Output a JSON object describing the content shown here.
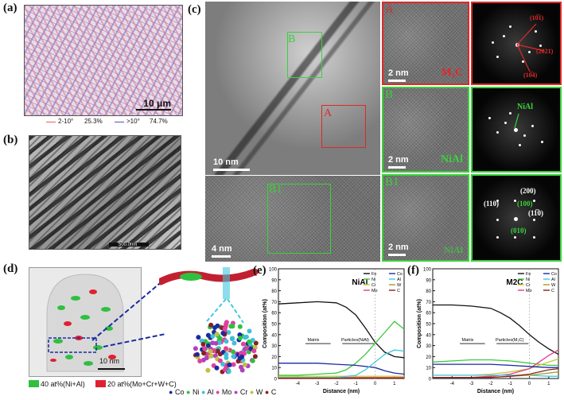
{
  "panel_labels": {
    "a": "(a)",
    "b": "(b)",
    "c": "(c)",
    "d": "(d)",
    "e": "(e)",
    "f": "(f)"
  },
  "panel_a": {
    "scale": "10 μm",
    "legend": [
      {
        "range": "2-10°",
        "fraction": "25.3%",
        "color": "#e06070"
      },
      {
        "range": ">10°",
        "fraction": "74.7%",
        "color": "#5050c0"
      }
    ]
  },
  "panel_b": {
    "scale": "500.0nm"
  },
  "panel_c": {
    "main_scale": "10 nm",
    "bottom_scale": "4 nm",
    "boxes": {
      "A": "A",
      "B": "B",
      "B1": "B1"
    },
    "hr_scale": "2 nm",
    "phases": {
      "A": "M₂C",
      "B": "NiAl",
      "B1": "NiAl"
    },
    "fft_labels": {
      "A": [
        "(10̅1)",
        "(2021)",
        "(10̅4)"
      ],
      "B": [
        "NiAl"
      ],
      "B1": [
        "(110)",
        "(200)",
        "(100)",
        "(11̅0)",
        "(010)"
      ]
    }
  },
  "panel_d": {
    "scale": "10 nm",
    "legend": [
      {
        "label": "40 at%(Ni+Al)",
        "color": "#2fc040"
      },
      {
        "label": "20 at%(Mo+Cr+W+C)",
        "color": "#e02030"
      }
    ],
    "elements": [
      {
        "name": "Co",
        "color": "#1a2aa0"
      },
      {
        "name": "Ni",
        "color": "#2fc040"
      },
      {
        "name": "Al",
        "color": "#40c0d8"
      },
      {
        "name": "Mo",
        "color": "#e040a0"
      },
      {
        "name": "Cr",
        "color": "#b040c0"
      },
      {
        "name": "W",
        "color": "#c0c040"
      },
      {
        "name": "C",
        "color": "#8a2020"
      }
    ]
  },
  "chart_data": [
    {
      "type": "line",
      "title": "NiAl",
      "xlabel": "Distance (nm)",
      "ylabel": "Composition (at%)",
      "xlim": [
        -5,
        1.5
      ],
      "ylim": [
        0,
        100
      ],
      "xticks": [
        -4,
        -3,
        -2,
        -1,
        0,
        1
      ],
      "yticks": [
        0,
        10,
        20,
        30,
        40,
        50,
        60,
        70,
        80,
        90,
        100
      ],
      "annotations": [
        "Matrix",
        "Particles(NiAl)"
      ],
      "series": [
        {
          "name": "Fe",
          "color": "#111111",
          "x": [
            -5,
            -4,
            -3,
            -2,
            -1.5,
            -1,
            -0.5,
            0,
            0.5,
            1,
            1.5
          ],
          "y": [
            68,
            69,
            70,
            69,
            65,
            58,
            46,
            33,
            24,
            20,
            19
          ]
        },
        {
          "name": "Ni",
          "color": "#3cc83c",
          "x": [
            -5,
            -4,
            -3,
            -2,
            -1.5,
            -1,
            -0.5,
            0,
            0.5,
            1,
            1.5
          ],
          "y": [
            3,
            3,
            4,
            5,
            8,
            14,
            22,
            32,
            42,
            52,
            45
          ]
        },
        {
          "name": "Cr",
          "color": "#c8c83c",
          "x": [
            -5,
            -4,
            -3,
            -2,
            -1,
            0,
            1,
            1.5
          ],
          "y": [
            2,
            2,
            2,
            2,
            2,
            2,
            2,
            2
          ]
        },
        {
          "name": "Mo",
          "color": "#e03c8c",
          "x": [
            -5,
            -4,
            -3,
            -2,
            -1,
            0,
            1,
            1.5
          ],
          "y": [
            1,
            1,
            1,
            1,
            1,
            1,
            1,
            1
          ]
        },
        {
          "name": "Co",
          "color": "#1a2aa0",
          "x": [
            -5,
            -4,
            -3,
            -2,
            -1,
            0,
            0.5,
            1,
            1.5
          ],
          "y": [
            14,
            14,
            14,
            13,
            12,
            10,
            7,
            5,
            4
          ]
        },
        {
          "name": "Al",
          "color": "#40c8e0",
          "x": [
            -5,
            -4,
            -3,
            -2,
            -1,
            -0.5,
            0,
            0.5,
            1,
            1.5
          ],
          "y": [
            1,
            1,
            1,
            1,
            3,
            8,
            15,
            22,
            26,
            25
          ]
        },
        {
          "name": "W",
          "color": "#a0a020",
          "x": [
            -5,
            -4,
            -3,
            -2,
            -1,
            0,
            1,
            1.5
          ],
          "y": [
            0.5,
            0.5,
            0.5,
            0.5,
            0.5,
            0.5,
            0.5,
            0.5
          ]
        },
        {
          "name": "C",
          "color": "#8a2020",
          "x": [
            -5,
            -4,
            -3,
            -2,
            -1,
            0,
            1,
            1.5
          ],
          "y": [
            0.3,
            0.3,
            0.3,
            0.3,
            0.3,
            0.3,
            0.3,
            0.3
          ]
        }
      ]
    },
    {
      "type": "line",
      "title": "M2C",
      "xlabel": "Distance (nm)",
      "ylabel": "Composition (at%)",
      "xlim": [
        -5,
        1.5
      ],
      "ylim": [
        0,
        100
      ],
      "xticks": [
        -4,
        -3,
        -2,
        -1,
        0,
        1
      ],
      "yticks": [
        0,
        10,
        20,
        30,
        40,
        50,
        60,
        70,
        80,
        90,
        100
      ],
      "annotations": [
        "Matrix",
        "Particles(M₂C)"
      ],
      "series": [
        {
          "name": "Fe",
          "color": "#111111",
          "x": [
            -5,
            -4,
            -3,
            -2,
            -1.5,
            -1,
            -0.5,
            0,
            0.5,
            1,
            1.5
          ],
          "y": [
            67,
            67,
            66,
            64,
            60,
            55,
            48,
            40,
            33,
            27,
            22
          ]
        },
        {
          "name": "Ni",
          "color": "#3cc83c",
          "x": [
            -5,
            -4,
            -3,
            -2,
            -1,
            0,
            0.5,
            1,
            1.5
          ],
          "y": [
            15,
            16,
            17,
            17,
            16,
            14,
            13,
            12,
            12
          ]
        },
        {
          "name": "Cr",
          "color": "#c8c83c",
          "x": [
            -5,
            -4,
            -3,
            -2,
            -1,
            0,
            0.5,
            1,
            1.5
          ],
          "y": [
            3,
            3,
            3,
            4,
            6,
            9,
            12,
            15,
            18
          ]
        },
        {
          "name": "Mo",
          "color": "#e03c8c",
          "x": [
            -5,
            -4,
            -3,
            -2,
            -1,
            0,
            0.5,
            1,
            1.5
          ],
          "y": [
            1,
            1,
            1,
            2,
            4,
            9,
            15,
            21,
            26
          ]
        },
        {
          "name": "Co",
          "color": "#1a2aa0",
          "x": [
            -5,
            -4,
            -3,
            -2,
            -1,
            0,
            1,
            1.5
          ],
          "y": [
            13,
            13,
            13,
            13,
            12,
            11,
            10,
            10
          ]
        },
        {
          "name": "Al",
          "color": "#40c8e0",
          "x": [
            -5,
            -4,
            -3,
            -2,
            -1,
            0,
            1,
            1.5
          ],
          "y": [
            3,
            3,
            3,
            3,
            3,
            3,
            2,
            2
          ]
        },
        {
          "name": "W",
          "color": "#a0a020",
          "x": [
            -5,
            -4,
            -3,
            -2,
            -1,
            0,
            0.5,
            1,
            1.5
          ],
          "y": [
            1,
            1,
            1,
            1,
            2,
            3,
            4,
            5,
            6
          ]
        },
        {
          "name": "C",
          "color": "#8a2020",
          "x": [
            -5,
            -4,
            -3,
            -2,
            -1,
            0,
            0.5,
            1,
            1.5
          ],
          "y": [
            1,
            1,
            1,
            1,
            2,
            4,
            6,
            8,
            9
          ]
        }
      ]
    }
  ]
}
